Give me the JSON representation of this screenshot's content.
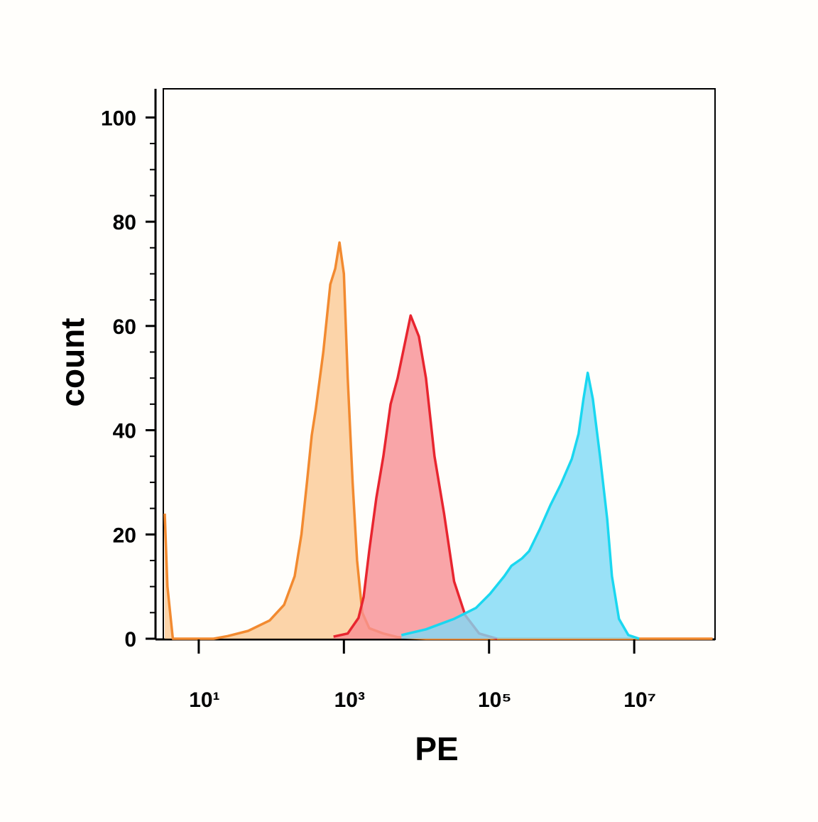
{
  "chart_data": {
    "type": "area",
    "x_label": "PE",
    "y_label": "count",
    "xscale": "log",
    "xlim": [
      3.4,
      127000000
    ],
    "ylim": [
      0,
      105.5
    ],
    "xticks": [
      {
        "value": 10,
        "label": "10¹"
      },
      {
        "value": 1000,
        "label": "10³"
      },
      {
        "value": 100000,
        "label": "10⁵"
      },
      {
        "value": 10000000,
        "label": "10⁷"
      }
    ],
    "yticks": [
      0,
      20,
      40,
      60,
      80,
      100
    ],
    "yticks_minor": [
      5,
      10,
      15,
      25,
      30,
      35,
      45,
      50,
      55,
      65,
      70,
      75,
      85,
      90,
      95
    ],
    "series": [
      {
        "color": "#f28a30",
        "fill": "#fbc995",
        "x": [
          3.4,
          3.7,
          4.4,
          16,
          25,
          48,
          95,
          150,
          210,
          260,
          310,
          360,
          410,
          520,
          650,
          760,
          870,
          1000,
          1130,
          1320,
          1520,
          1790,
          2240,
          3500,
          5500,
          13500,
          120000000
        ],
        "values": [
          24,
          10,
          0,
          0,
          0.5,
          1.5,
          3.5,
          6.5,
          12,
          20,
          30,
          39,
          44,
          55,
          68,
          71,
          76,
          70,
          50,
          30,
          15,
          5,
          2,
          1,
          0.3,
          0,
          0
        ]
      },
      {
        "color": "#e8252f",
        "fill": "#f78f93",
        "x": [
          720,
          1130,
          1590,
          1870,
          2240,
          2800,
          3500,
          4400,
          5500,
          8300,
          10800,
          13500,
          17700,
          24000,
          33000,
          47000,
          73000,
          129000
        ],
        "values": [
          0.4,
          1,
          4,
          8,
          17,
          27,
          35,
          45,
          50,
          62,
          58,
          50,
          35,
          24,
          11,
          4.5,
          1,
          0
        ]
      },
      {
        "color": "#1ad7f0",
        "fill": "#7fdaf6",
        "x": [
          6200,
          13500,
          33000,
          66000,
          103000,
          162000,
          204000,
          284000,
          357000,
          500000,
          700000,
          980000,
          1380000,
          1710000,
          2000000,
          2290000,
          2690000,
          3380000,
          4240000,
          4930000,
          6170000,
          8300000,
          11700000
        ],
        "values": [
          0.7,
          1.8,
          3.8,
          5.9,
          8.6,
          12,
          14,
          15.4,
          16.8,
          21,
          25.6,
          29.7,
          34.5,
          39.3,
          46,
          51,
          46,
          35,
          23,
          12,
          3.8,
          0.7,
          0
        ]
      }
    ]
  }
}
